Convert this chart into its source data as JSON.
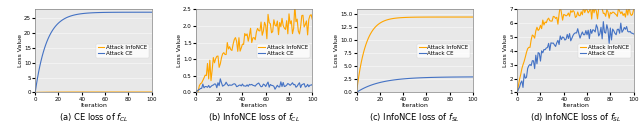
{
  "seed": 42,
  "n_iter": 101,
  "plots": [
    {
      "ylabel": "Loss Value",
      "xlabel": "Iteration",
      "ylim": [
        0,
        28
      ],
      "caption": "(a) CE loss of $f_{CL}$",
      "orange_plateau": 0.12,
      "orange_noise": 0.01,
      "orange_tau": 15,
      "orange_noisy": false,
      "blue_plateau": 27,
      "blue_noise": 0.2,
      "blue_tau": 10,
      "blue_noisy": false,
      "legend_loc": "center right"
    },
    {
      "ylabel": "Loss Value",
      "xlabel": "Iteration",
      "ylim": [
        0,
        2.5
      ],
      "caption": "(b) InfoNCE loss of $f_{CL}$",
      "orange_plateau": 2.3,
      "orange_noise": 0.18,
      "orange_tau": 35,
      "orange_noisy": true,
      "blue_plateau": 0.22,
      "blue_noise": 0.04,
      "blue_tau": 5,
      "blue_noisy": true,
      "legend_loc": "center right"
    },
    {
      "ylabel": "Loss Value",
      "xlabel": "Iteration",
      "ylim": [
        0,
        16
      ],
      "caption": "(c) InfoNCE loss of $f_{SL}$",
      "orange_plateau": 14.5,
      "orange_noise": 0.1,
      "orange_tau": 8,
      "orange_noisy": false,
      "blue_plateau": 3.0,
      "blue_noise": 0.1,
      "blue_tau": 20,
      "blue_noisy": false,
      "legend_loc": "center right"
    },
    {
      "ylabel": "Loss Value",
      "xlabel": "Iteration",
      "ylim": [
        1.0,
        7.0
      ],
      "caption": "(d) InfoNCE loss of $f_{SL}$",
      "orange_plateau": 6.8,
      "orange_noise": 0.22,
      "orange_tau": 12,
      "orange_noisy": true,
      "blue_plateau": 5.5,
      "blue_noise": 0.25,
      "blue_tau": 20,
      "blue_noisy": true,
      "legend_loc": "center right"
    }
  ],
  "orange_color": "#FFA500",
  "blue_color": "#4472C4",
  "bg_color": "#E8E8E8",
  "legend_orange": "Attack InfoNCE",
  "legend_blue": "Attack CE",
  "label_fontsize": 4.5,
  "tick_fontsize": 4.0,
  "legend_fontsize": 4.0,
  "caption_fontsize": 6.0,
  "linewidth": 0.8,
  "figsize": [
    6.4,
    1.32
  ]
}
